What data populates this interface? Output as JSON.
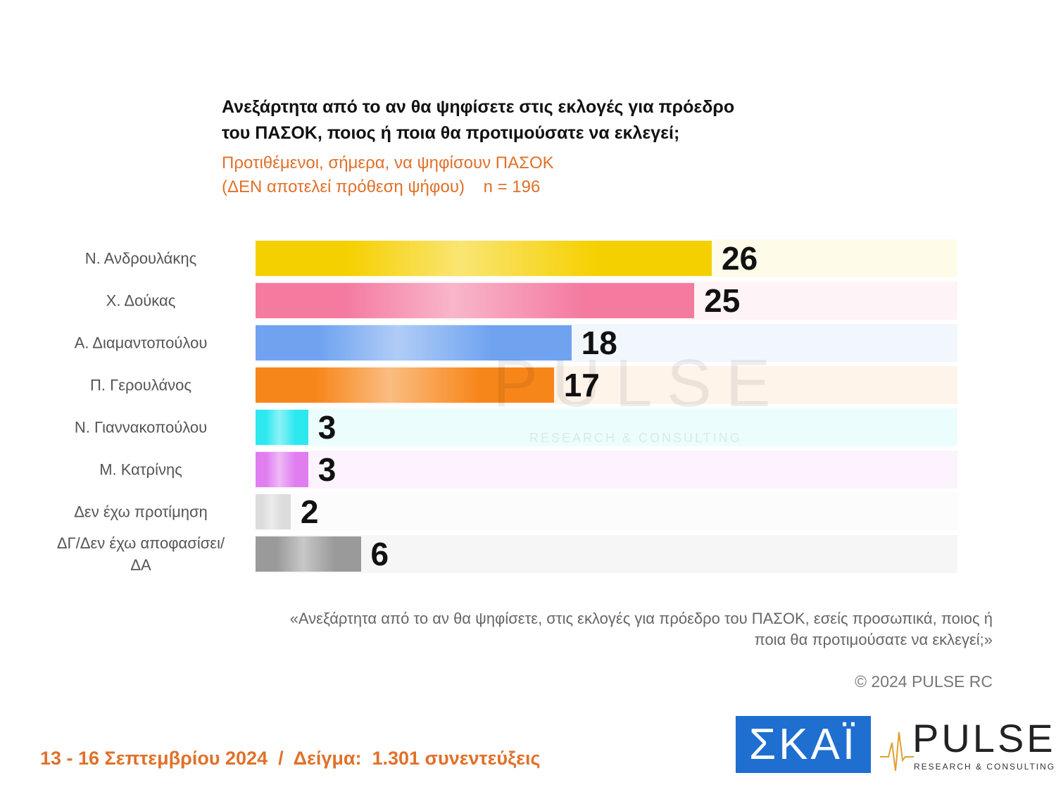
{
  "chart_data": {
    "type": "hbar",
    "title": [
      "Ανεξάρτητα από το αν θα ψηφίσετε στις εκλογές για πρόεδρο",
      "του ΠΑΣΟΚ, ποιος ή ποια θα προτιμούσατε να εκλεγεί;"
    ],
    "subtitle": [
      "Προτιθέμενοι, σήμερα, να ψηφίσουν ΠΑΣΟΚ",
      "(ΔΕΝ αποτελεί πρόθεση ψήφου)    n = 196"
    ],
    "categories": [
      "Ν. Ανδρουλάκης",
      "Χ. Δούκας",
      "Α. Διαμαντοπούλου",
      "Π. Γερουλάνος",
      "Ν. Γιαννακοπούλου",
      "Μ. Κατρίνης",
      "Δεν έχω προτίμηση",
      "ΔΓ/Δεν έχω αποφασίσει/ΔΑ"
    ],
    "values": [
      26,
      25,
      18,
      17,
      3,
      3,
      2,
      6
    ],
    "colors": [
      "#f5d000",
      "#f47aa0",
      "#6fa3f0",
      "#f7861a",
      "#2ee8f0",
      "#e07ef0",
      "#dcdcdc",
      "#9a9a9a"
    ],
    "xlim": [
      0,
      40
    ],
    "note": "«Ανεξάρτητα από το αν θα ψηφίσετε, στις εκλογές για πρόεδρο του ΠΑΣΟΚ, εσείς προσωπικά, ποιος ή ποια θα προτιμούσατε να εκλεγεί;»",
    "copyright": "© 2024 PULSE RC"
  },
  "footer": "13 - 16 Σεπτεμβρίου 2024  /  Δείγμα:  1.301 συνεντεύξεις",
  "logos": {
    "skai": "ΣΚΑΪ",
    "pulse": "PULSE",
    "pulse_tagline": "RESEARCH & CONSULTING"
  }
}
